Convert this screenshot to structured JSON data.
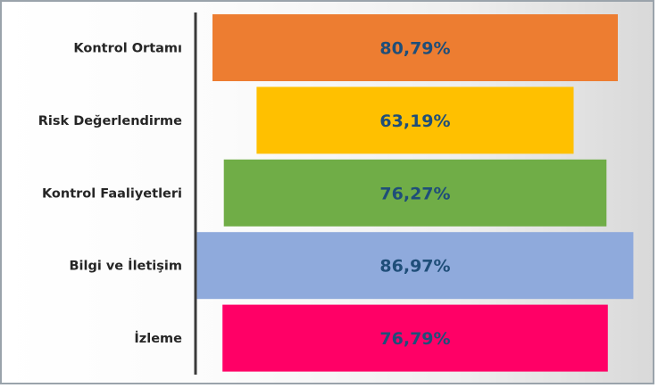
{
  "chart_data": {
    "type": "bar",
    "subtype": "funnel",
    "title": "",
    "xlabel": "",
    "ylabel": "",
    "categories": [
      "Kontrol Ortamı",
      "Risk Değerlendirme",
      "Kontrol Faaliyetleri",
      "Bilgi ve İletişim",
      "İzleme"
    ],
    "values": [
      80.79,
      63.19,
      76.27,
      86.97,
      76.79
    ],
    "value_labels": [
      "80,79%",
      "63,19%",
      "76,27%",
      "86,97%",
      "76,79%"
    ],
    "colors": [
      "#ed7d31",
      "#ffc000",
      "#70ad47",
      "#8faadc",
      "#ff0066"
    ],
    "value_label_color": "#1f4e79",
    "xlim": [
      0,
      100
    ],
    "legend": "none",
    "grid": false
  }
}
